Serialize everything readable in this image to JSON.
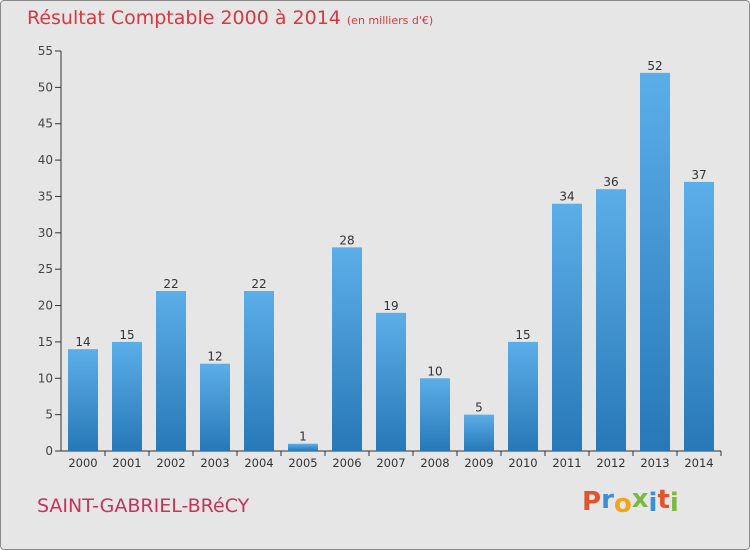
{
  "header": {
    "title": "Résultat Comptable 2000 à 2014",
    "subtitle": "(en milliers d'€)"
  },
  "footer": {
    "town": "SAINT-GABRIEL-BRéCY",
    "brand": "Proxiti",
    "brand_colors": [
      "#e2542e",
      "#3a8fd6",
      "#f2a51a",
      "#7cba3f",
      "#3a8fd6",
      "#e2542e",
      "#7cba3f"
    ]
  },
  "colors": {
    "bar_top": "#5caee8",
    "bar_bottom": "#2878b8",
    "axis": "#333333",
    "grid": "#cccccc",
    "background": "#e6e6e6",
    "title": "#d7393f"
  },
  "chart_data": {
    "type": "bar",
    "title": "Résultat Comptable 2000 à 2014",
    "subtitle": "(en milliers d'€)",
    "xlabel": "",
    "ylabel": "",
    "ylim": [
      0,
      55
    ],
    "ytick_step": 5,
    "categories": [
      "2000",
      "2001",
      "2002",
      "2003",
      "2004",
      "2005",
      "2006",
      "2007",
      "2008",
      "2009",
      "2010",
      "2011",
      "2012",
      "2013",
      "2014"
    ],
    "values": [
      14,
      15,
      22,
      12,
      22,
      1,
      28,
      19,
      10,
      5,
      15,
      34,
      36,
      52,
      37
    ],
    "data_labels": [
      "14",
      "15",
      "22",
      "12",
      "22",
      "1",
      "28",
      "19",
      "10",
      "5",
      "15",
      "34",
      "36",
      "52",
      "37"
    ]
  }
}
